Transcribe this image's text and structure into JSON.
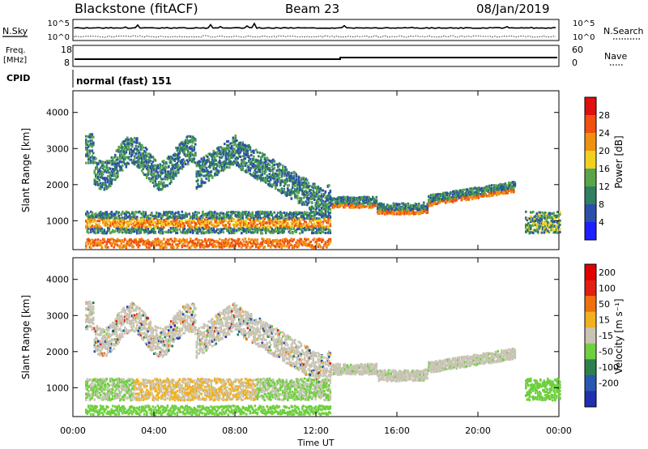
{
  "header": {
    "station": "Blackstone (fitACF)",
    "beam": "Beam 23",
    "date": "08/Jan/2019"
  },
  "summary": {
    "nsky_label": "N.Sky",
    "nsearch_label": "N.Search",
    "nsky_tick_top": "10^5",
    "nsky_tick_bottom": "10^0",
    "freq_label_1": "Freq.",
    "freq_label_2": "[MHz]",
    "freq_ticks": [
      "18",
      "8"
    ],
    "nave_label": "Nave",
    "nave_ticks": [
      "60",
      "0"
    ],
    "cpid_label": "CPID",
    "cpid_value": "normal (fast) 151"
  },
  "chart_data": [
    {
      "type": "heatmap",
      "name": "power",
      "ylabel": "Slant Range [km]",
      "y_ticks": [
        1000,
        2000,
        3000,
        4000
      ],
      "ylim": [
        200,
        4600
      ],
      "xlim": [
        0,
        24
      ],
      "colorbar_label": "Power [dB]",
      "colorbar_ticks": [
        "4",
        "8",
        "12",
        "16",
        "20",
        "24",
        "28"
      ],
      "colorbar_colors": [
        "#1f1fff",
        "#2c4fa8",
        "#2f8060",
        "#5aa54a",
        "#f0d020",
        "#f09010",
        "#f05010",
        "#e01010"
      ]
    },
    {
      "type": "heatmap",
      "name": "velocity",
      "ylabel": "Slant Range [km]",
      "y_ticks": [
        1000,
        2000,
        3000,
        4000
      ],
      "ylim": [
        200,
        4600
      ],
      "xlim": [
        0,
        24
      ],
      "colorbar_label": "Velocity [m s⁻¹]",
      "colorbar_ticks": [
        "200",
        "100",
        "50",
        "15",
        "-15",
        "-50",
        "-100",
        "-200"
      ],
      "colorbar_colors": [
        "#2030b0",
        "#2a58b0",
        "#2f8050",
        "#6fcf3f",
        "#c8c4b4",
        "#f0b020",
        "#f07010",
        "#e02010",
        "#e00000"
      ]
    }
  ],
  "x_axis": {
    "ticks": [
      "00:00",
      "04:00",
      "08:00",
      "12:00",
      "16:00",
      "20:00",
      "00:00"
    ],
    "label": "Time UT"
  }
}
